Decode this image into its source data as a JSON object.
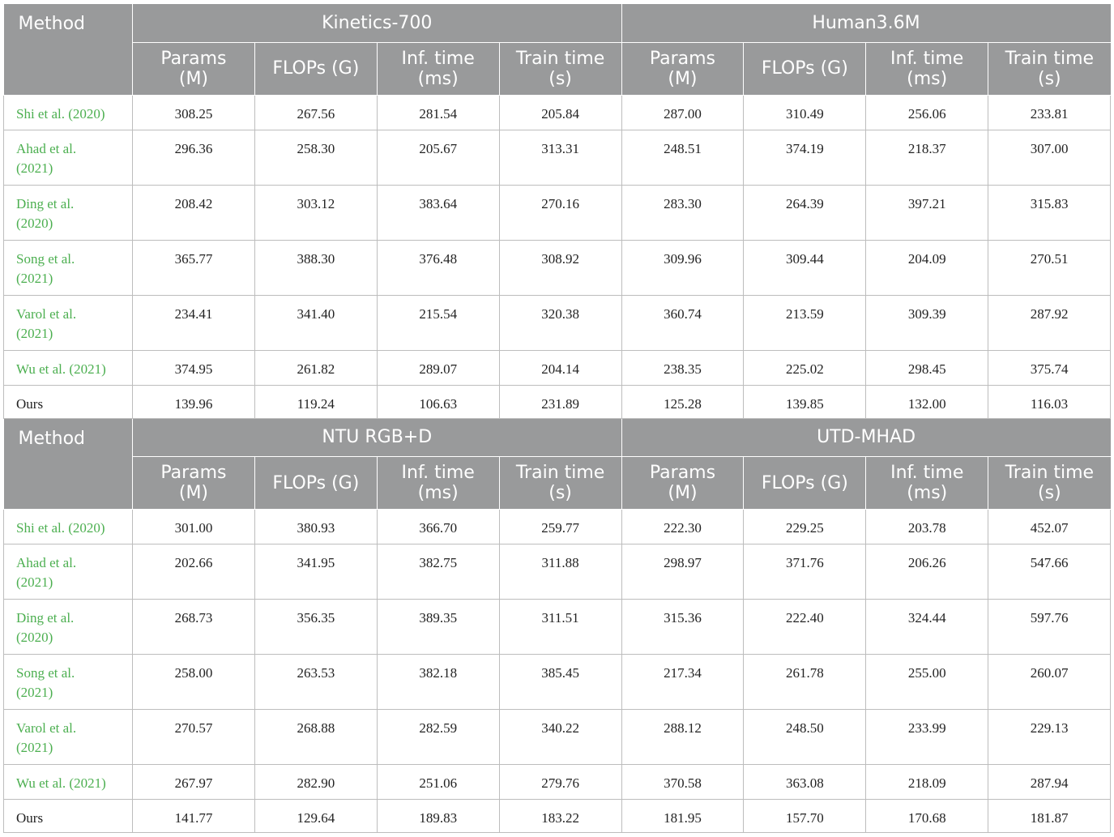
{
  "header": {
    "method": "Method",
    "col_params": [
      "Params",
      "(M)"
    ],
    "col_flops": "FLOPs (G)",
    "col_inf": [
      "Inf. time",
      "(ms)"
    ],
    "col_train": [
      "Train time",
      "(s)"
    ]
  },
  "tables": [
    {
      "datasets": [
        "Kinetics-700",
        "Human3.6M"
      ],
      "rows": [
        {
          "method": [
            "Shi et al. (2020)"
          ],
          "cite": true,
          "values": [
            "308.25",
            "267.56",
            "281.54",
            "205.84",
            "287.00",
            "310.49",
            "256.06",
            "233.81"
          ]
        },
        {
          "method": [
            "Ahad et al.",
            "(2021)"
          ],
          "cite": true,
          "values": [
            "296.36",
            "258.30",
            "205.67",
            "313.31",
            "248.51",
            "374.19",
            "218.37",
            "307.00"
          ]
        },
        {
          "method": [
            "Ding et al.",
            "(2020)"
          ],
          "cite": true,
          "values": [
            "208.42",
            "303.12",
            "383.64",
            "270.16",
            "283.30",
            "264.39",
            "397.21",
            "315.83"
          ]
        },
        {
          "method": [
            "Song et al.",
            "(2021)"
          ],
          "cite": true,
          "values": [
            "365.77",
            "388.30",
            "376.48",
            "308.92",
            "309.96",
            "309.44",
            "204.09",
            "270.51"
          ]
        },
        {
          "method": [
            "Varol et al.",
            "(2021)"
          ],
          "cite": true,
          "values": [
            "234.41",
            "341.40",
            "215.54",
            "320.38",
            "360.74",
            "213.59",
            "309.39",
            "287.92"
          ]
        },
        {
          "method": [
            "Wu et al. (2021)"
          ],
          "cite": true,
          "values": [
            "374.95",
            "261.82",
            "289.07",
            "204.14",
            "238.35",
            "225.02",
            "298.45",
            "375.74"
          ]
        },
        {
          "method": [
            "Ours"
          ],
          "cite": false,
          "values": [
            "139.96",
            "119.24",
            "106.63",
            "231.89",
            "125.28",
            "139.85",
            "132.00",
            "116.03"
          ]
        }
      ]
    },
    {
      "datasets": [
        "NTU RGB+D",
        "UTD-MHAD"
      ],
      "rows": [
        {
          "method": [
            "Shi et al. (2020)"
          ],
          "cite": true,
          "values": [
            "301.00",
            "380.93",
            "366.70",
            "259.77",
            "222.30",
            "229.25",
            "203.78",
            "452.07"
          ]
        },
        {
          "method": [
            "Ahad et al.",
            "(2021)"
          ],
          "cite": true,
          "values": [
            "202.66",
            "341.95",
            "382.75",
            "311.88",
            "298.97",
            "371.76",
            "206.26",
            "547.66"
          ]
        },
        {
          "method": [
            "Ding et al.",
            "(2020)"
          ],
          "cite": true,
          "values": [
            "268.73",
            "356.35",
            "389.35",
            "311.51",
            "315.36",
            "222.40",
            "324.44",
            "597.76"
          ]
        },
        {
          "method": [
            "Song et al.",
            "(2021)"
          ],
          "cite": true,
          "values": [
            "258.00",
            "263.53",
            "382.18",
            "385.45",
            "217.34",
            "261.78",
            "255.00",
            "260.07"
          ]
        },
        {
          "method": [
            "Varol et al.",
            "(2021)"
          ],
          "cite": true,
          "values": [
            "270.57",
            "268.88",
            "282.59",
            "340.22",
            "288.12",
            "248.50",
            "233.99",
            "229.13"
          ]
        },
        {
          "method": [
            "Wu et al. (2021)"
          ],
          "cite": true,
          "values": [
            "267.97",
            "282.90",
            "251.06",
            "279.76",
            "370.58",
            "363.08",
            "218.09",
            "287.94"
          ]
        },
        {
          "method": [
            "Ours"
          ],
          "cite": false,
          "values": [
            "141.77",
            "129.64",
            "189.83",
            "183.22",
            "181.95",
            "157.70",
            "170.68",
            "181.87"
          ]
        }
      ]
    }
  ]
}
